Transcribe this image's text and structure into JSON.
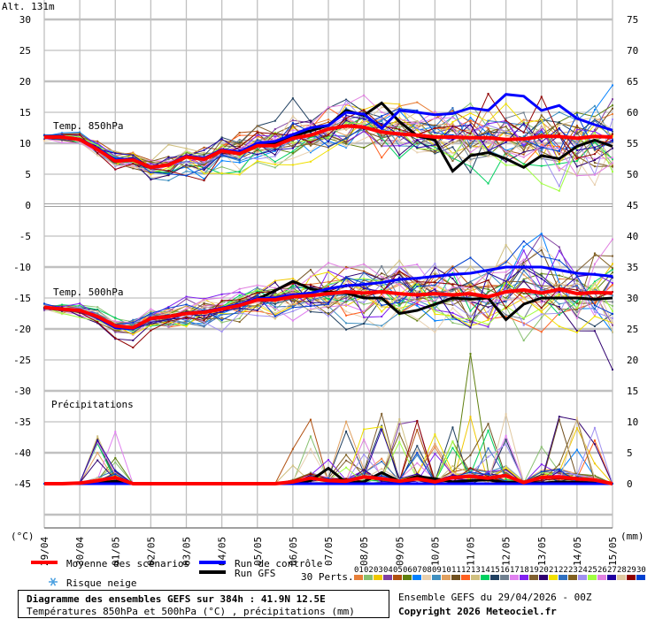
{
  "chart_data": {
    "type": "line",
    "title": "Diagramme des ensembles GEFS sur 384h : 41.9N 12.5E",
    "subtitle": "Températures 850hPa et 500hPa (°C) , précipitations (mm)",
    "run_info": "Ensemble GEFS du 29/04/2026 - 00Z",
    "copyright": "Copyright 2026 Meteociel.fr",
    "left_unit": "(°C)",
    "right_unit": "(mm)",
    "altitude": "Alt. 131m",
    "left_ticks": [
      30,
      25,
      20,
      15,
      10,
      5,
      0,
      -5,
      -10,
      -15,
      -20,
      -25,
      -30,
      -35,
      -40,
      -45
    ],
    "right_ticks": [
      75,
      70,
      65,
      60,
      55,
      50,
      45,
      40,
      35,
      30,
      25,
      20,
      15,
      10,
      5,
      0
    ],
    "ylim_left": [
      -52,
      33
    ],
    "x_tick_labels": [
      "29/04",
      "30/04",
      "01/05",
      "02/05",
      "03/05",
      "04/05",
      "05/05",
      "06/05",
      "07/05",
      "08/05",
      "09/05",
      "10/05",
      "11/05",
      "12/05",
      "13/05",
      "14/05",
      "15/05"
    ],
    "time_step_hours": 12,
    "panels": [
      {
        "label": "Temp. 850hPa",
        "offset": 0,
        "mean": [
          11,
          11,
          10.6,
          9,
          7.1,
          7.3,
          6.1,
          6.5,
          7.8,
          7.4,
          8.8,
          8.3,
          9.6,
          9.6,
          10.8,
          11.3,
          12.3,
          12.8,
          12.6,
          11.8,
          11.5,
          11.3,
          11,
          11,
          10.9,
          10.9,
          10.6,
          10.7,
          11.1,
          11.1,
          10.8,
          11.1,
          11
        ],
        "control": [
          11,
          11,
          10.7,
          9.2,
          7.3,
          7.5,
          6,
          6.6,
          8,
          7.6,
          9,
          8.6,
          10,
          10.3,
          11.4,
          12.5,
          12.9,
          15,
          14.7,
          12.4,
          15.3,
          15,
          14.6,
          14.8,
          15.7,
          15.3,
          17.9,
          17.6,
          15.3,
          16.1,
          14,
          13,
          12.1
        ],
        "gfs": [
          11,
          11,
          10.6,
          9.1,
          7.2,
          7.4,
          6.2,
          6.5,
          7.9,
          7.5,
          8.9,
          8.5,
          9.8,
          9.9,
          11.2,
          12,
          12.9,
          15.3,
          14.5,
          16.5,
          13.5,
          11.2,
          10.5,
          5.5,
          8,
          8.5,
          7.5,
          6.1,
          8,
          7.5,
          9.5,
          10.5,
          9.5
        ]
      },
      {
        "label": "Temp. 500hPa",
        "offset": 0,
        "mean": [
          -16.5,
          -16.8,
          -17,
          -18,
          -19.5,
          -19.8,
          -18.3,
          -18,
          -17.5,
          -17.3,
          -16.8,
          -16.2,
          -15.3,
          -15.3,
          -14.8,
          -14.6,
          -14.3,
          -14,
          -14.2,
          -14,
          -14.3,
          -14.5,
          -14.3,
          -14.5,
          -14.3,
          -14.8,
          -14,
          -13.7,
          -14.2,
          -13.6,
          -14.3,
          -14.1,
          -14.2
        ],
        "control": [
          -16.5,
          -16.8,
          -17.1,
          -18.2,
          -19.8,
          -20,
          -18.4,
          -18.1,
          -17.4,
          -17.2,
          -16.6,
          -16,
          -15.1,
          -15,
          -14.5,
          -14.2,
          -13.5,
          -13,
          -12.8,
          -12.5,
          -12,
          -11.8,
          -11.5,
          -11.2,
          -11,
          -10.5,
          -10,
          -10,
          -10,
          -10.5,
          -11,
          -11.2,
          -11.5
        ],
        "gfs": [
          -16.5,
          -16.8,
          -17,
          -18.1,
          -19.6,
          -19.9,
          -18.2,
          -17.9,
          -17.4,
          -17.2,
          -16.7,
          -16.1,
          -15.2,
          -13.8,
          -12.3,
          -13.5,
          -14,
          -14.2,
          -15,
          -15,
          -17.5,
          -17,
          -16,
          -15,
          -15.2,
          -15,
          -18.5,
          -16,
          -15,
          -15,
          -15,
          -15.2,
          -15
        ]
      },
      {
        "label": "Précipitations",
        "offset": -45,
        "mean": [
          0,
          0,
          0.1,
          0.5,
          1,
          0,
          0,
          0,
          0,
          0,
          0,
          0,
          0,
          0,
          0.3,
          0.9,
          0.5,
          0.4,
          1.1,
          0.8,
          0.4,
          0.8,
          0.3,
          1,
          1.2,
          0.9,
          1.3,
          0.2,
          1,
          1.1,
          0.8,
          0.6,
          0
        ],
        "control": [
          0,
          0,
          0,
          0,
          0,
          0,
          0,
          0,
          0,
          0,
          0,
          0,
          0,
          0,
          0,
          0,
          0,
          0,
          0,
          0,
          0,
          0,
          0,
          0,
          0,
          0,
          0,
          0,
          0,
          0,
          0,
          0,
          0
        ],
        "gfs": [
          0,
          0,
          0,
          0.2,
          0.4,
          0,
          0,
          0,
          0,
          0,
          0,
          0,
          0,
          0,
          0,
          0.5,
          2.5,
          0.2,
          0.3,
          1.8,
          0.4,
          1.2,
          0.8,
          0.3,
          0.5,
          0.6,
          0.2,
          0.3,
          0.1,
          0.3,
          0.2,
          0.1,
          0
        ]
      }
    ],
    "legend": {
      "mean": "Moyenne des scénarios",
      "control": "Run de contrôle",
      "gfs": "Run GFS",
      "snow": "Risque neige",
      "perts": "30 Perts.",
      "mean_color": "#ff0000",
      "control_color": "#0000ff",
      "gfs_color": "#000000"
    },
    "members": [
      {
        "id": "01",
        "color": "#e8803a"
      },
      {
        "id": "02",
        "color": "#88c070"
      },
      {
        "id": "03",
        "color": "#f0c800"
      },
      {
        "id": "04",
        "color": "#8040a0"
      },
      {
        "id": "05",
        "color": "#b05010"
      },
      {
        "id": "06",
        "color": "#608010"
      },
      {
        "id": "07",
        "color": "#0080ff"
      },
      {
        "id": "08",
        "color": "#e8d0b0"
      },
      {
        "id": "09",
        "color": "#4090c0"
      },
      {
        "id": "10",
        "color": "#e0a060"
      },
      {
        "id": "11",
        "color": "#705020"
      },
      {
        "id": "12",
        "color": "#ff6020"
      },
      {
        "id": "13",
        "color": "#d0c080"
      },
      {
        "id": "14",
        "color": "#00d060"
      },
      {
        "id": "15",
        "color": "#204060"
      },
      {
        "id": "16",
        "color": "#708090"
      },
      {
        "id": "17",
        "color": "#e080f0"
      },
      {
        "id": "18",
        "color": "#8020f0"
      },
      {
        "id": "19",
        "color": "#806030"
      },
      {
        "id": "20",
        "color": "#300070"
      },
      {
        "id": "21",
        "color": "#f0e000"
      },
      {
        "id": "22",
        "color": "#3070c0"
      },
      {
        "id": "23",
        "color": "#806020"
      },
      {
        "id": "24",
        "color": "#a090f0"
      },
      {
        "id": "25",
        "color": "#a0ff40"
      },
      {
        "id": "26",
        "color": "#e080e0"
      },
      {
        "id": "27",
        "color": "#2000a0"
      },
      {
        "id": "28",
        "color": "#e0c8a0"
      },
      {
        "id": "29",
        "color": "#900000"
      },
      {
        "id": "30",
        "color": "#0040d0"
      }
    ]
  }
}
